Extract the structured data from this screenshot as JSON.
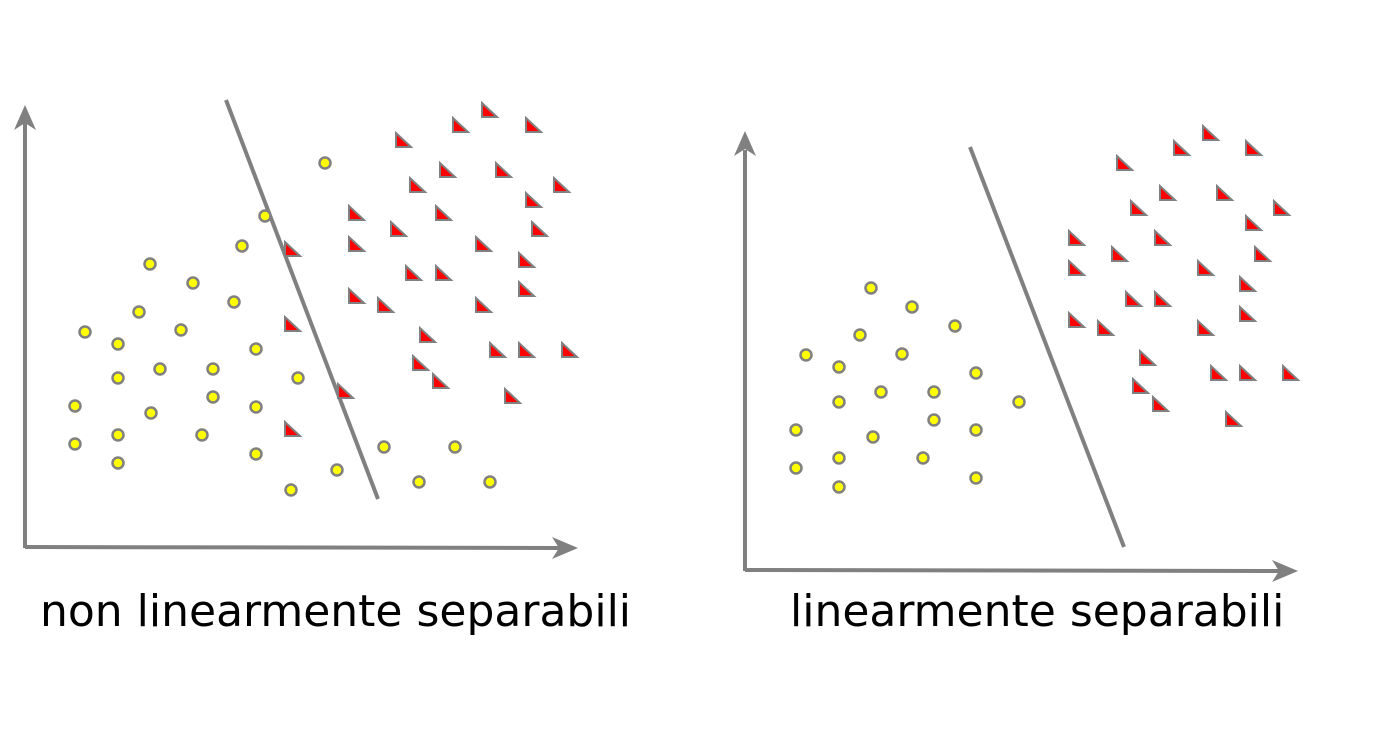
{
  "colors": {
    "axis": "#808080",
    "circle_fill": "#ffff00",
    "circle_stroke": "#808080",
    "triangle_fill": "#ff0000",
    "triangle_stroke": "#808080"
  },
  "panels": [
    {
      "id": "left",
      "caption": "non linearmente separabili",
      "circles": [
        [
          325,
          163
        ],
        [
          265,
          216
        ],
        [
          242,
          246
        ],
        [
          150,
          264
        ],
        [
          193,
          283
        ],
        [
          234,
          302
        ],
        [
          139,
          312
        ],
        [
          85,
          332
        ],
        [
          181,
          330
        ],
        [
          118,
          344
        ],
        [
          256,
          349
        ],
        [
          160,
          369
        ],
        [
          213,
          369
        ],
        [
          118,
          378
        ],
        [
          298,
          378
        ],
        [
          75,
          406
        ],
        [
          151,
          413
        ],
        [
          213,
          397
        ],
        [
          256,
          407
        ],
        [
          75,
          444
        ],
        [
          118,
          435
        ],
        [
          202,
          435
        ],
        [
          256,
          454
        ],
        [
          118,
          463
        ],
        [
          291,
          490
        ],
        [
          337,
          470
        ],
        [
          384,
          447
        ],
        [
          455,
          447
        ],
        [
          419,
          482
        ],
        [
          490,
          482
        ]
      ],
      "triangles": [
        [
          403,
          140
        ],
        [
          460,
          125
        ],
        [
          489,
          110
        ],
        [
          533,
          125
        ],
        [
          417,
          185
        ],
        [
          447,
          170
        ],
        [
          503,
          170
        ],
        [
          533,
          200
        ],
        [
          561,
          185
        ],
        [
          356,
          213
        ],
        [
          443,
          213
        ],
        [
          398,
          229
        ],
        [
          539,
          229
        ],
        [
          356,
          244
        ],
        [
          292,
          249
        ],
        [
          483,
          244
        ],
        [
          526,
          260
        ],
        [
          413,
          273
        ],
        [
          443,
          273
        ],
        [
          526,
          289
        ],
        [
          356,
          296
        ],
        [
          385,
          305
        ],
        [
          483,
          305
        ],
        [
          292,
          324
        ],
        [
          427,
          335
        ],
        [
          497,
          350
        ],
        [
          526,
          350
        ],
        [
          569,
          350
        ],
        [
          420,
          363
        ],
        [
          440,
          381
        ],
        [
          345,
          391
        ],
        [
          512,
          396
        ],
        [
          292,
          429
        ]
      ],
      "separator": [
        [
          226,
          100
        ],
        [
          378,
          499
        ]
      ]
    },
    {
      "id": "right",
      "caption": "linearmente separabili",
      "circles": [
        [
          871,
          288
        ],
        [
          912,
          307
        ],
        [
          860,
          335
        ],
        [
          955,
          326
        ],
        [
          806,
          355
        ],
        [
          902,
          354
        ],
        [
          839,
          367
        ],
        [
          976,
          373
        ],
        [
          881,
          392
        ],
        [
          934,
          392
        ],
        [
          839,
          402
        ],
        [
          1019,
          402
        ],
        [
          796,
          430
        ],
        [
          934,
          420
        ],
        [
          976,
          430
        ],
        [
          873,
          437
        ],
        [
          796,
          468
        ],
        [
          839,
          458
        ],
        [
          923,
          458
        ],
        [
          976,
          478
        ],
        [
          839,
          487
        ]
      ],
      "triangles": [
        [
          1124,
          163
        ],
        [
          1181,
          148
        ],
        [
          1210,
          133
        ],
        [
          1253,
          148
        ],
        [
          1138,
          208
        ],
        [
          1167,
          193
        ],
        [
          1224,
          193
        ],
        [
          1253,
          223
        ],
        [
          1281,
          208
        ],
        [
          1076,
          238
        ],
        [
          1162,
          238
        ],
        [
          1119,
          254
        ],
        [
          1262,
          254
        ],
        [
          1076,
          268
        ],
        [
          1205,
          268
        ],
        [
          1247,
          284
        ],
        [
          1133,
          299
        ],
        [
          1162,
          299
        ],
        [
          1247,
          314
        ],
        [
          1076,
          320
        ],
        [
          1105,
          328
        ],
        [
          1205,
          328
        ],
        [
          1147,
          358
        ],
        [
          1218,
          373
        ],
        [
          1247,
          373
        ],
        [
          1290,
          373
        ],
        [
          1140,
          386
        ],
        [
          1160,
          404
        ],
        [
          1233,
          419
        ]
      ],
      "separator": [
        [
          970,
          147
        ],
        [
          1124,
          547
        ]
      ]
    }
  ]
}
